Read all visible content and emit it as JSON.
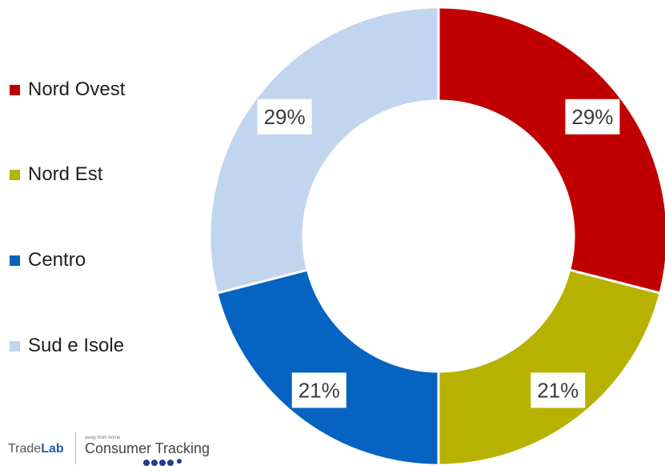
{
  "chart_data": {
    "type": "pie",
    "donut": true,
    "legend_position": "left",
    "categories": [
      "Nord Ovest",
      "Nord Est",
      "Centro",
      "Sud e Isole"
    ],
    "values": [
      29,
      21,
      21,
      29
    ],
    "data_labels": [
      "29%",
      "21%",
      "21%",
      "29%"
    ],
    "colors": [
      "#c00000",
      "#b7b200",
      "#0563c1",
      "#c2d5ef"
    ]
  },
  "logo": {
    "brand_a": "Trade",
    "brand_b": "Lab",
    "tagline": "away from home",
    "product": "Consumer Tracking"
  }
}
